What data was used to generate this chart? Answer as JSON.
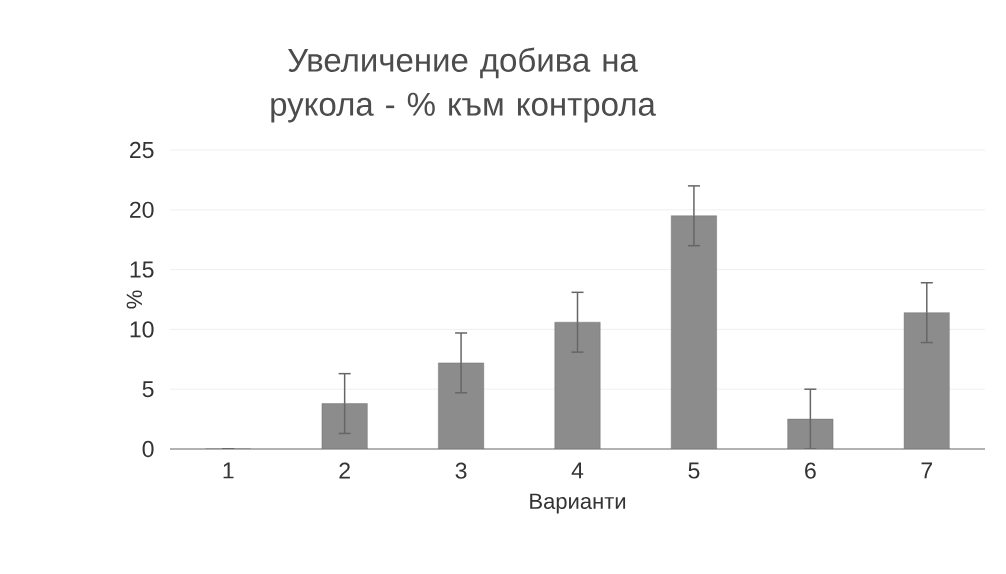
{
  "chart_data": {
    "type": "bar",
    "title": "Увеличение добива на рукола - % към контрола",
    "xlabel": "Варианти",
    "ylabel": "%",
    "categories": [
      "1",
      "2",
      "3",
      "4",
      "5",
      "6",
      "7"
    ],
    "values": [
      0,
      3.8,
      7.2,
      10.6,
      19.5,
      2.5,
      11.4
    ],
    "errors": [
      null,
      2.5,
      2.5,
      2.5,
      2.5,
      2.5,
      2.5
    ],
    "color": "#8c8c8c",
    "ylim": [
      0,
      25
    ],
    "yticks": [
      0,
      5,
      10,
      15,
      20,
      25
    ],
    "grid": "y"
  }
}
